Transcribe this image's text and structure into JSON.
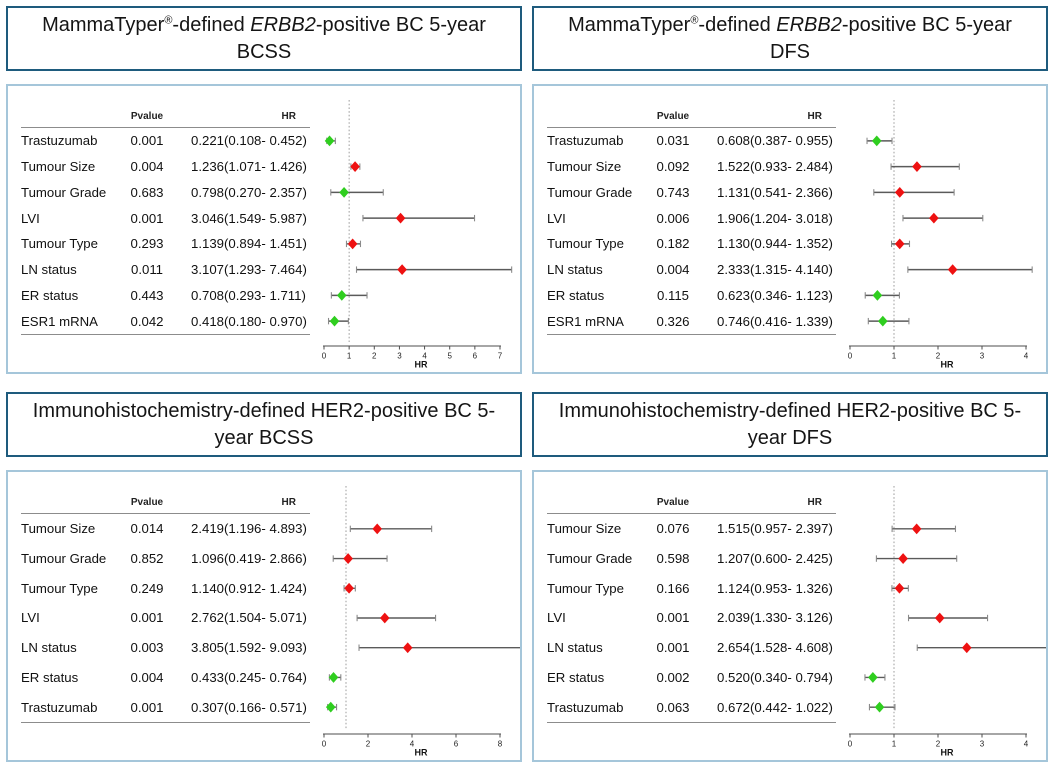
{
  "figure": {
    "col_headers": {
      "pvalue": "Pvalue",
      "hr": "HR"
    },
    "colors": {
      "risk": "#ee1111",
      "protective": "#2fce1f",
      "ci_line": "#5a5a5a",
      "ci_cap": "#8a8a8a",
      "ref_line": "#9e9e9e",
      "axis": "#4d4d4d",
      "tick_text": "#222222",
      "title_border": "#1e5b7d",
      "panel_border": "#a5c6da"
    }
  },
  "chart_data": [
    {
      "type": "forest",
      "title": {
        "pre": "MammaTyper",
        "sup": "®",
        "mid": "-defined ",
        "italic": "ERBB2",
        "post": "-positive BC 5-year BCSS"
      },
      "xlabel": "HR",
      "xlim": [
        0,
        7
      ],
      "xticks": [
        0,
        1,
        2,
        3,
        4,
        5,
        6,
        7
      ],
      "ref_line": 1,
      "rows": [
        {
          "label": "Trastuzumab",
          "pvalue": "0.001",
          "hr_text": "0.221(0.108- 0.452)",
          "hr": 0.221,
          "lo": 0.108,
          "hi": 0.452,
          "color": "protective"
        },
        {
          "label": "Tumour Size",
          "pvalue": "0.004",
          "hr_text": "1.236(1.071- 1.426)",
          "hr": 1.236,
          "lo": 1.071,
          "hi": 1.426,
          "color": "risk"
        },
        {
          "label": "Tumour Grade",
          "pvalue": "0.683",
          "hr_text": "0.798(0.270- 2.357)",
          "hr": 0.798,
          "lo": 0.27,
          "hi": 2.357,
          "color": "protective"
        },
        {
          "label": "LVI",
          "pvalue": "0.001",
          "hr_text": "3.046(1.549- 5.987)",
          "hr": 3.046,
          "lo": 1.549,
          "hi": 5.987,
          "color": "risk"
        },
        {
          "label": "Tumour Type",
          "pvalue": "0.293",
          "hr_text": "1.139(0.894- 1.451)",
          "hr": 1.139,
          "lo": 0.894,
          "hi": 1.451,
          "color": "risk"
        },
        {
          "label": "LN status",
          "pvalue": "0.011",
          "hr_text": "3.107(1.293- 7.464)",
          "hr": 3.107,
          "lo": 1.293,
          "hi": 7.464,
          "color": "risk"
        },
        {
          "label": "ER status",
          "pvalue": "0.443",
          "hr_text": "0.708(0.293- 1.711)",
          "hr": 0.708,
          "lo": 0.293,
          "hi": 1.711,
          "color": "protective"
        },
        {
          "label": "ESR1 mRNA",
          "pvalue": "0.042",
          "hr_text": "0.418(0.180- 0.970)",
          "hr": 0.418,
          "lo": 0.18,
          "hi": 0.97,
          "color": "protective"
        }
      ]
    },
    {
      "type": "forest",
      "title": {
        "pre": "MammaTyper",
        "sup": "®",
        "mid": "-defined ",
        "italic": "ERBB2",
        "post": "-positive BC 5-year DFS"
      },
      "xlabel": "HR",
      "xlim": [
        0,
        4
      ],
      "xticks": [
        0,
        1,
        2,
        3,
        4
      ],
      "ref_line": 1,
      "rows": [
        {
          "label": "Trastuzumab",
          "pvalue": "0.031",
          "hr_text": "0.608(0.387- 0.955)",
          "hr": 0.608,
          "lo": 0.387,
          "hi": 0.955,
          "color": "protective"
        },
        {
          "label": "Tumour Size",
          "pvalue": "0.092",
          "hr_text": "1.522(0.933- 2.484)",
          "hr": 1.522,
          "lo": 0.933,
          "hi": 2.484,
          "color": "risk"
        },
        {
          "label": "Tumour Grade",
          "pvalue": "0.743",
          "hr_text": "1.131(0.541- 2.366)",
          "hr": 1.131,
          "lo": 0.541,
          "hi": 2.366,
          "color": "risk"
        },
        {
          "label": "LVI",
          "pvalue": "0.006",
          "hr_text": "1.906(1.204- 3.018)",
          "hr": 1.906,
          "lo": 1.204,
          "hi": 3.018,
          "color": "risk"
        },
        {
          "label": "Tumour Type",
          "pvalue": "0.182",
          "hr_text": "1.130(0.944- 1.352)",
          "hr": 1.13,
          "lo": 0.944,
          "hi": 1.352,
          "color": "risk"
        },
        {
          "label": "LN status",
          "pvalue": "0.004",
          "hr_text": "2.333(1.315- 4.140)",
          "hr": 2.333,
          "lo": 1.315,
          "hi": 4.14,
          "color": "risk"
        },
        {
          "label": "ER status",
          "pvalue": "0.115",
          "hr_text": "0.623(0.346- 1.123)",
          "hr": 0.623,
          "lo": 0.346,
          "hi": 1.123,
          "color": "protective"
        },
        {
          "label": "ESR1 mRNA",
          "pvalue": "0.326",
          "hr_text": "0.746(0.416- 1.339)",
          "hr": 0.746,
          "lo": 0.416,
          "hi": 1.339,
          "color": "protective"
        }
      ]
    },
    {
      "type": "forest",
      "title": {
        "pre": "Immunohistochemistry-defined HER2-positive BC 5-year BCSS",
        "sup": "",
        "mid": "",
        "italic": "",
        "post": ""
      },
      "xlabel": "HR",
      "xlim": [
        0,
        8
      ],
      "xticks": [
        0,
        2,
        4,
        6,
        8
      ],
      "ref_line": 1,
      "rows": [
        {
          "label": "Tumour Size",
          "pvalue": "0.014",
          "hr_text": "2.419(1.196- 4.893)",
          "hr": 2.419,
          "lo": 1.196,
          "hi": 4.893,
          "color": "risk"
        },
        {
          "label": "Tumour Grade",
          "pvalue": "0.852",
          "hr_text": "1.096(0.419- 2.866)",
          "hr": 1.096,
          "lo": 0.419,
          "hi": 2.866,
          "color": "risk"
        },
        {
          "label": "Tumour Type",
          "pvalue": "0.249",
          "hr_text": "1.140(0.912- 1.424)",
          "hr": 1.14,
          "lo": 0.912,
          "hi": 1.424,
          "color": "risk"
        },
        {
          "label": "LVI",
          "pvalue": "0.001",
          "hr_text": "2.762(1.504- 5.071)",
          "hr": 2.762,
          "lo": 1.504,
          "hi": 5.071,
          "color": "risk"
        },
        {
          "label": "LN status",
          "pvalue": "0.003",
          "hr_text": "3.805(1.592- 9.093)",
          "hr": 3.805,
          "lo": 1.592,
          "hi": 9.093,
          "color": "risk"
        },
        {
          "label": "ER status",
          "pvalue": "0.004",
          "hr_text": "0.433(0.245- 0.764)",
          "hr": 0.433,
          "lo": 0.245,
          "hi": 0.764,
          "color": "protective"
        },
        {
          "label": "Trastuzumab",
          "pvalue": "0.001",
          "hr_text": "0.307(0.166- 0.571)",
          "hr": 0.307,
          "lo": 0.166,
          "hi": 0.571,
          "color": "protective"
        }
      ]
    },
    {
      "type": "forest",
      "title": {
        "pre": "Immunohistochemistry-defined HER2-positive BC 5-year DFS",
        "sup": "",
        "mid": "",
        "italic": "",
        "post": ""
      },
      "xlabel": "HR",
      "xlim": [
        0,
        4
      ],
      "xticks": [
        0,
        1,
        2,
        3,
        4
      ],
      "ref_line": 1,
      "rows": [
        {
          "label": "Tumour Size",
          "pvalue": "0.076",
          "hr_text": "1.515(0.957- 2.397)",
          "hr": 1.515,
          "lo": 0.957,
          "hi": 2.397,
          "color": "risk"
        },
        {
          "label": "Tumour Grade",
          "pvalue": "0.598",
          "hr_text": "1.207(0.600- 2.425)",
          "hr": 1.207,
          "lo": 0.6,
          "hi": 2.425,
          "color": "risk"
        },
        {
          "label": "Tumour Type",
          "pvalue": "0.166",
          "hr_text": "1.124(0.953- 1.326)",
          "hr": 1.124,
          "lo": 0.953,
          "hi": 1.326,
          "color": "risk"
        },
        {
          "label": "LVI",
          "pvalue": "0.001",
          "hr_text": "2.039(1.330- 3.126)",
          "hr": 2.039,
          "lo": 1.33,
          "hi": 3.126,
          "color": "risk"
        },
        {
          "label": "LN status",
          "pvalue": "0.001",
          "hr_text": "2.654(1.528- 4.608)",
          "hr": 2.654,
          "lo": 1.528,
          "hi": 4.608,
          "color": "risk"
        },
        {
          "label": "ER status",
          "pvalue": "0.002",
          "hr_text": "0.520(0.340- 0.794)",
          "hr": 0.52,
          "lo": 0.34,
          "hi": 0.794,
          "color": "protective"
        },
        {
          "label": "Trastuzumab",
          "pvalue": "0.063",
          "hr_text": "0.672(0.442- 1.022)",
          "hr": 0.672,
          "lo": 0.442,
          "hi": 1.022,
          "color": "protective"
        }
      ]
    }
  ]
}
